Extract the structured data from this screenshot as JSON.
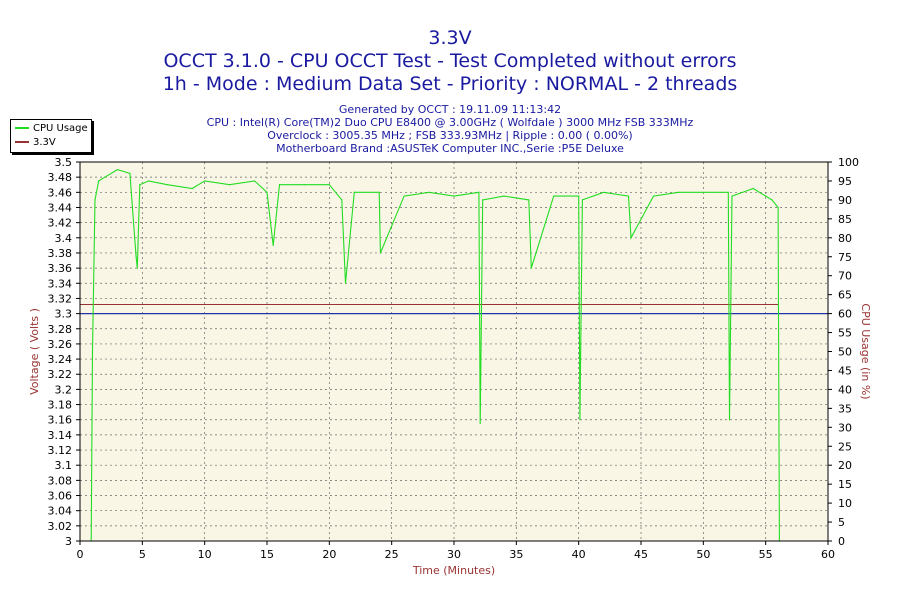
{
  "header": {
    "title1": "3.3V",
    "title2": "OCCT 3.1.0 - CPU OCCT Test - Test Completed without errors",
    "title3": "1h - Mode : Medium Data Set - Priority : NORMAL - 2 threads"
  },
  "info": {
    "line1": "Generated by OCCT : 19.11.09 11:13:42",
    "line2": "CPU : Intel(R) Core(TM)2 Duo CPU E8400 @ 3.00GHz ( Wolfdale ) 3000 MHz FSB 333MHz",
    "line3": "Overclock : 3005.35 MHz ; FSB 333.93MHz | Ripple : 0.00 ( 0.00%)",
    "line4": "Motherboard Brand :ASUSTeK Computer INC.,Serie :P5E Deluxe"
  },
  "legend": {
    "items": [
      {
        "label": "CPU Usage",
        "color": "#22dd22"
      },
      {
        "label": "3.3V",
        "color": "#993333"
      }
    ]
  },
  "chart_data": {
    "type": "line",
    "xlabel": "Time (Minutes)",
    "ylabel": "Voltage ( Volts )",
    "y2label": "CPU Usage (in %)",
    "xlim": [
      0,
      60
    ],
    "ylim": [
      3,
      3.5
    ],
    "y2lim": [
      0,
      100
    ],
    "x_ticks": [
      "0",
      "5",
      "10",
      "15",
      "20",
      "25",
      "30",
      "35",
      "40",
      "45",
      "50",
      "55",
      "60"
    ],
    "y_ticks": [
      "3",
      "3.02",
      "3.04",
      "3.06",
      "3.08",
      "3.1",
      "3.12",
      "3.14",
      "3.16",
      "3.18",
      "3.2",
      "3.22",
      "3.24",
      "3.26",
      "3.28",
      "3.3",
      "3.32",
      "3.34",
      "3.36",
      "3.38",
      "3.4",
      "3.42",
      "3.44",
      "3.46",
      "3.48",
      "3.5"
    ],
    "y2_ticks": [
      "0",
      "5",
      "10",
      "15",
      "20",
      "25",
      "30",
      "35",
      "40",
      "45",
      "50",
      "55",
      "60",
      "65",
      "70",
      "75",
      "80",
      "85",
      "90",
      "95",
      "100"
    ],
    "grid": true,
    "colors": {
      "plot_bg": "#faf6e6",
      "cpu_line": "#22dd22",
      "voltage_line": "#993333",
      "ref_line": "#2233aa",
      "axis_label": "#993333"
    },
    "series": [
      {
        "name": "3.3V",
        "axis": "left",
        "x": [
          0,
          56
        ],
        "values": [
          3.312,
          3.312
        ]
      },
      {
        "name": "CPU Usage",
        "axis": "right",
        "x": [
          0.9,
          1.0,
          1.2,
          1.5,
          2,
          3,
          4,
          4.5,
          4.6,
          4.8,
          5.5,
          7,
          9,
          10,
          12,
          14,
          15,
          15.5,
          16,
          18,
          20,
          21,
          21.3,
          22,
          24,
          24.1,
          26,
          28,
          30,
          32,
          32.1,
          32.3,
          34,
          36,
          36.2,
          38,
          40,
          40.1,
          40.3,
          42,
          44,
          44.2,
          46,
          48,
          50,
          51.5,
          52,
          52.1,
          52.3,
          54,
          55,
          55.5,
          56,
          56.1
        ],
        "values": [
          0,
          50,
          90,
          95,
          96,
          98,
          97,
          75,
          72,
          94,
          95,
          94,
          93,
          95,
          94,
          95,
          92,
          78,
          94,
          94,
          94,
          90,
          68,
          92,
          92,
          76,
          91,
          92,
          91,
          92,
          31,
          90,
          91,
          90,
          72,
          91,
          91,
          32,
          90,
          92,
          91,
          80,
          91,
          92,
          92,
          92,
          92,
          32,
          91,
          93,
          91,
          90,
          88,
          0
        ]
      }
    ]
  }
}
